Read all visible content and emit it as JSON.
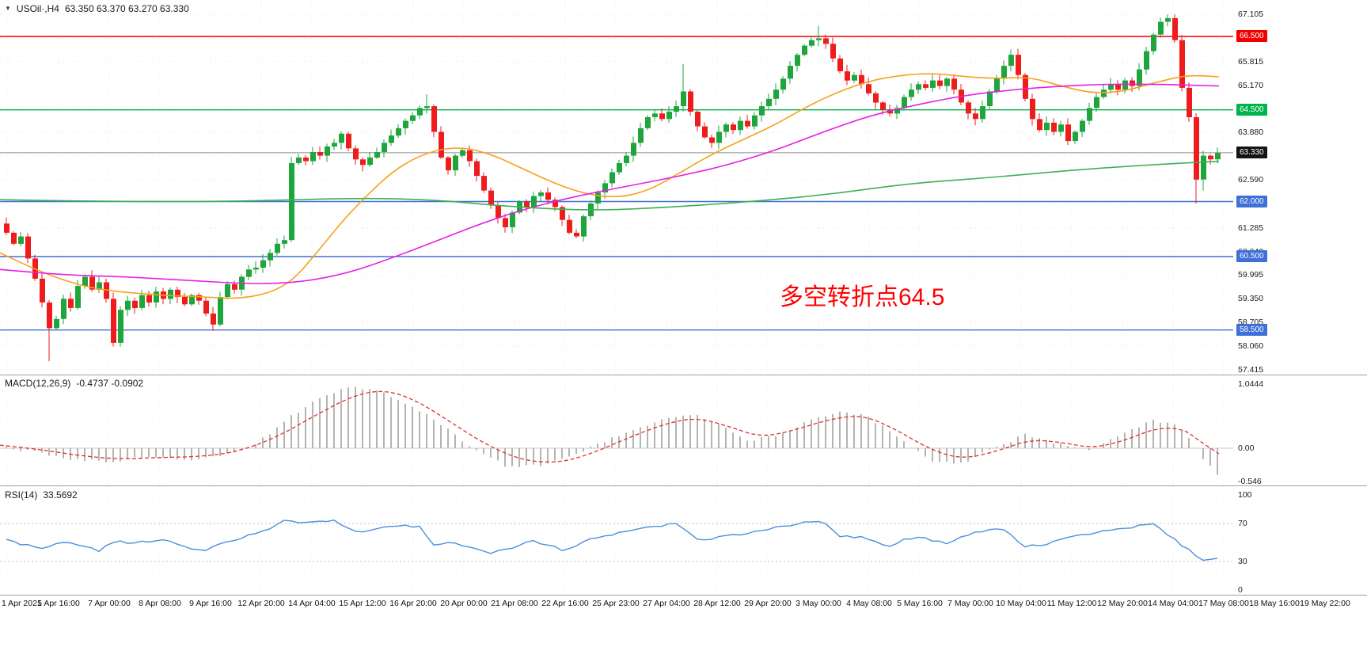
{
  "window": {
    "bg": "#FFFFFF"
  },
  "legend": {
    "symbol": "USOil·,H4",
    "ohlc": "63.350 63.370 63.270 63.330"
  },
  "annotation": {
    "text": "多空转折点64.5",
    "color": "#FF0000"
  },
  "indicators": {
    "macd": {
      "label": "MACD(12,26,9)",
      "values": "-0.4737 -0.0902"
    },
    "rsi": {
      "label": "RSI(14)",
      "value": "33.5692"
    }
  },
  "colors": {
    "candle_up": "#1EA53C",
    "candle_down": "#EE1C1C",
    "grid": "#EAEAEA",
    "axis_text": "#1A1A1A"
  },
  "chart_data": {
    "type": "candlestick+macd+rsi",
    "title": "USOil H4 chart with MACD and RSI panels",
    "price_panel": {
      "first_open": 61.4,
      "closes": [
        61.15,
        60.85,
        61.05,
        60.45,
        59.9,
        59.25,
        58.55,
        58.8,
        59.35,
        59.1,
        59.7,
        59.95,
        59.6,
        59.8,
        59.35,
        58.15,
        59.05,
        59.3,
        59.1,
        59.45,
        59.25,
        59.55,
        59.35,
        59.6,
        59.4,
        59.2,
        59.45,
        59.3,
        58.95,
        58.65,
        59.4,
        59.75,
        59.6,
        59.95,
        60.15,
        60.2,
        60.4,
        60.6,
        60.85,
        60.95,
        63.05,
        63.2,
        63.1,
        63.35,
        63.25,
        63.5,
        63.6,
        63.85,
        63.45,
        63.15,
        63.0,
        63.2,
        63.35,
        63.6,
        63.8,
        64.0,
        64.2,
        64.35,
        64.55,
        64.6,
        63.9,
        63.2,
        62.85,
        63.25,
        63.4,
        63.1,
        62.7,
        62.3,
        61.9,
        61.55,
        61.3,
        61.7,
        62.0,
        61.85,
        62.15,
        62.25,
        62.05,
        61.85,
        61.5,
        61.15,
        61.05,
        61.6,
        61.95,
        62.25,
        62.5,
        62.8,
        63.05,
        63.25,
        63.6,
        64.0,
        64.3,
        64.4,
        64.25,
        64.45,
        64.6,
        65.0,
        64.45,
        64.05,
        63.75,
        63.6,
        63.9,
        64.1,
        63.95,
        64.2,
        64.05,
        64.35,
        64.6,
        64.8,
        65.05,
        65.35,
        65.7,
        66.0,
        66.25,
        66.4,
        66.45,
        66.3,
        65.9,
        65.55,
        65.3,
        65.45,
        65.2,
        64.95,
        64.7,
        64.5,
        64.4,
        64.55,
        64.85,
        65.05,
        65.2,
        65.1,
        65.3,
        65.15,
        65.35,
        65.05,
        64.7,
        64.4,
        64.25,
        64.6,
        65.0,
        65.35,
        65.7,
        66.0,
        65.45,
        64.8,
        64.25,
        63.95,
        64.15,
        63.9,
        64.1,
        63.65,
        63.9,
        64.2,
        64.55,
        64.85,
        65.05,
        65.2,
        65.05,
        65.3,
        65.15,
        65.6,
        66.1,
        66.55,
        66.9,
        67.0,
        66.4,
        65.1,
        64.3,
        62.6,
        63.25,
        63.15,
        63.33
      ],
      "wick_overrides": {
        "6": {
          "low": 57.65
        },
        "15": {
          "low": 58.05
        },
        "59": {
          "high": 64.92
        },
        "95": {
          "high": 65.75
        },
        "114": {
          "high": 66.78
        },
        "163": {
          "high": 67.1
        },
        "167": {
          "low": 61.95
        },
        "168": {
          "low": 62.3
        }
      },
      "ma_lines": [
        {
          "name": "ma-fast-orange",
          "color": "#F7A11B",
          "points": [
            [
              0,
              60.6
            ],
            [
              60,
              60.0
            ],
            [
              120,
              59.6
            ],
            [
              200,
              59.45
            ],
            [
              260,
              59.4
            ],
            [
              300,
              59.35
            ],
            [
              340,
              59.5
            ],
            [
              370,
              59.85
            ],
            [
              400,
              60.6
            ],
            [
              430,
              61.4
            ],
            [
              460,
              62.1
            ],
            [
              500,
              62.9
            ],
            [
              540,
              63.35
            ],
            [
              580,
              63.5
            ],
            [
              620,
              63.3
            ],
            [
              660,
              62.9
            ],
            [
              700,
              62.5
            ],
            [
              740,
              62.2
            ],
            [
              780,
              62.1
            ],
            [
              820,
              62.3
            ],
            [
              860,
              62.8
            ],
            [
              900,
              63.3
            ],
            [
              940,
              63.7
            ],
            [
              980,
              64.1
            ],
            [
              1020,
              64.6
            ],
            [
              1060,
              65.0
            ],
            [
              1100,
              65.3
            ],
            [
              1140,
              65.45
            ],
            [
              1180,
              65.5
            ],
            [
              1220,
              65.4
            ],
            [
              1260,
              65.35
            ],
            [
              1300,
              65.4
            ],
            [
              1340,
              65.15
            ],
            [
              1380,
              64.95
            ],
            [
              1420,
              65.0
            ],
            [
              1460,
              65.25
            ],
            [
              1500,
              65.45
            ],
            [
              1540,
              65.4
            ]
          ]
        },
        {
          "name": "ma-mid-magenta",
          "color": "#E520E5",
          "points": [
            [
              0,
              60.15
            ],
            [
              80,
              60.0
            ],
            [
              160,
              59.95
            ],
            [
              240,
              59.85
            ],
            [
              320,
              59.75
            ],
            [
              380,
              59.8
            ],
            [
              440,
              60.05
            ],
            [
              500,
              60.5
            ],
            [
              560,
              61.0
            ],
            [
              620,
              61.5
            ],
            [
              680,
              61.9
            ],
            [
              740,
              62.2
            ],
            [
              800,
              62.45
            ],
            [
              860,
              62.7
            ],
            [
              920,
              63.0
            ],
            [
              980,
              63.4
            ],
            [
              1040,
              63.9
            ],
            [
              1100,
              64.35
            ],
            [
              1160,
              64.65
            ],
            [
              1220,
              64.9
            ],
            [
              1280,
              65.05
            ],
            [
              1340,
              65.15
            ],
            [
              1400,
              65.2
            ],
            [
              1460,
              65.2
            ],
            [
              1540,
              65.15
            ]
          ]
        },
        {
          "name": "ma-slow-green",
          "color": "#3CB054",
          "points": [
            [
              0,
              62.05
            ],
            [
              150,
              62.0
            ],
            [
              300,
              62.0
            ],
            [
              450,
              62.1
            ],
            [
              550,
              62.05
            ],
            [
              650,
              61.85
            ],
            [
              750,
              61.75
            ],
            [
              850,
              61.85
            ],
            [
              950,
              62.0
            ],
            [
              1050,
              62.2
            ],
            [
              1150,
              62.5
            ],
            [
              1250,
              62.65
            ],
            [
              1350,
              62.85
            ],
            [
              1450,
              63.0
            ],
            [
              1540,
              63.1
            ]
          ]
        }
      ],
      "levels": [
        {
          "price": 66.5,
          "label": "66.500",
          "color": "#F00000"
        },
        {
          "price": 64.5,
          "label": "64.500",
          "color": "#00B34D"
        },
        {
          "price": 62.0,
          "label": "62.000",
          "color": "#3F6FD7"
        },
        {
          "price": 60.5,
          "label": "60.500",
          "color": "#3F6FD7"
        },
        {
          "price": 58.5,
          "label": "58.500",
          "color": "#3F6FD7"
        }
      ],
      "current_price": {
        "value": 63.33,
        "label": "63.330",
        "line_color": "#8C8C8C",
        "badge_color": "#141414"
      },
      "y_labels": [
        {
          "text": "67.105",
          "price": 67.105
        },
        {
          "text": "65.815",
          "price": 65.815
        },
        {
          "text": "65.170",
          "price": 65.17
        },
        {
          "text": "63.880",
          "price": 63.88
        },
        {
          "text": "62.590",
          "price": 62.59
        },
        {
          "text": "61.285",
          "price": 61.285
        },
        {
          "text": "60.640",
          "price": 60.64
        },
        {
          "text": "59.995",
          "price": 59.995
        },
        {
          "text": "59.350",
          "price": 59.35
        },
        {
          "text": "58.705",
          "price": 58.705
        },
        {
          "text": "58.060",
          "price": 58.06
        },
        {
          "text": "57.415",
          "price": 57.415
        }
      ],
      "grid_prices": [
        67.105,
        66.46,
        65.815,
        65.17,
        64.525,
        63.88,
        63.235,
        62.59,
        61.945,
        61.285,
        60.64,
        59.995,
        59.35,
        58.705,
        58.06,
        57.415
      ],
      "y_range": [
        57.415,
        67.105
      ]
    },
    "macd_panel": {
      "hist_color": "#B4B4B4",
      "signal_color": "#E03030",
      "hist_anchors": [
        [
          0,
          0.02
        ],
        [
          40,
          -0.06
        ],
        [
          90,
          -0.18
        ],
        [
          140,
          -0.22
        ],
        [
          190,
          -0.12
        ],
        [
          240,
          -0.18
        ],
        [
          285,
          -0.1
        ],
        [
          325,
          0.08
        ],
        [
          365,
          0.5
        ],
        [
          405,
          0.85
        ],
        [
          445,
          1.0
        ],
        [
          475,
          0.95
        ],
        [
          515,
          0.7
        ],
        [
          555,
          0.42
        ],
        [
          595,
          0.02
        ],
        [
          640,
          -0.3
        ],
        [
          685,
          -0.27
        ],
        [
          725,
          -0.12
        ],
        [
          765,
          0.12
        ],
        [
          805,
          0.32
        ],
        [
          845,
          0.5
        ],
        [
          875,
          0.55
        ],
        [
          905,
          0.42
        ],
        [
          945,
          0.12
        ],
        [
          985,
          0.22
        ],
        [
          1025,
          0.45
        ],
        [
          1065,
          0.6
        ],
        [
          1095,
          0.52
        ],
        [
          1135,
          0.18
        ],
        [
          1175,
          -0.2
        ],
        [
          1215,
          -0.24
        ],
        [
          1255,
          0.0
        ],
        [
          1295,
          0.22
        ],
        [
          1335,
          0.08
        ],
        [
          1375,
          -0.04
        ],
        [
          1415,
          0.2
        ],
        [
          1455,
          0.45
        ],
        [
          1485,
          0.38
        ],
        [
          1505,
          0.1
        ],
        [
          1525,
          -0.25
        ],
        [
          1540,
          -0.47
        ]
      ],
      "signal_anchors": [
        [
          0,
          0.05
        ],
        [
          50,
          -0.02
        ],
        [
          100,
          -0.12
        ],
        [
          150,
          -0.18
        ],
        [
          200,
          -0.15
        ],
        [
          250,
          -0.14
        ],
        [
          300,
          -0.06
        ],
        [
          350,
          0.18
        ],
        [
          400,
          0.55
        ],
        [
          450,
          0.88
        ],
        [
          490,
          0.95
        ],
        [
          530,
          0.75
        ],
        [
          570,
          0.42
        ],
        [
          615,
          0.05
        ],
        [
          660,
          -0.2
        ],
        [
          705,
          -0.24
        ],
        [
          745,
          -0.1
        ],
        [
          790,
          0.15
        ],
        [
          840,
          0.4
        ],
        [
          880,
          0.5
        ],
        [
          920,
          0.36
        ],
        [
          960,
          0.18
        ],
        [
          1000,
          0.28
        ],
        [
          1050,
          0.48
        ],
        [
          1090,
          0.54
        ],
        [
          1130,
          0.32
        ],
        [
          1175,
          -0.02
        ],
        [
          1215,
          -0.18
        ],
        [
          1260,
          -0.05
        ],
        [
          1300,
          0.14
        ],
        [
          1340,
          0.1
        ],
        [
          1380,
          0.0
        ],
        [
          1420,
          0.12
        ],
        [
          1460,
          0.33
        ],
        [
          1495,
          0.32
        ],
        [
          1515,
          0.12
        ],
        [
          1540,
          -0.09
        ]
      ],
      "y_labels": [
        {
          "text": "1.0444",
          "value": 1.0444
        },
        {
          "text": "0.00",
          "value": 0
        },
        {
          "text": "-0.546",
          "value": -0.546
        }
      ]
    },
    "rsi_panel": {
      "line_color": "#4C8FDC",
      "levels": [
        70,
        30
      ],
      "anchors": [
        [
          0,
          55
        ],
        [
          25,
          49
        ],
        [
          50,
          43
        ],
        [
          75,
          51
        ],
        [
          100,
          47
        ],
        [
          125,
          41
        ],
        [
          145,
          52
        ],
        [
          170,
          49
        ],
        [
          200,
          53
        ],
        [
          230,
          47
        ],
        [
          255,
          41
        ],
        [
          280,
          50
        ],
        [
          310,
          56
        ],
        [
          335,
          62
        ],
        [
          360,
          74
        ],
        [
          380,
          69
        ],
        [
          400,
          72
        ],
        [
          425,
          73
        ],
        [
          445,
          61
        ],
        [
          470,
          63
        ],
        [
          500,
          68
        ],
        [
          530,
          66
        ],
        [
          550,
          46
        ],
        [
          570,
          51
        ],
        [
          590,
          45
        ],
        [
          615,
          39
        ],
        [
          645,
          43
        ],
        [
          670,
          52
        ],
        [
          695,
          47
        ],
        [
          715,
          41
        ],
        [
          745,
          54
        ],
        [
          785,
          61
        ],
        [
          825,
          67
        ],
        [
          855,
          70
        ],
        [
          885,
          52
        ],
        [
          915,
          56
        ],
        [
          945,
          60
        ],
        [
          985,
          67
        ],
        [
          1015,
          71
        ],
        [
          1040,
          72
        ],
        [
          1060,
          57
        ],
        [
          1090,
          55
        ],
        [
          1120,
          46
        ],
        [
          1155,
          56
        ],
        [
          1195,
          49
        ],
        [
          1235,
          61
        ],
        [
          1265,
          66
        ],
        [
          1295,
          46
        ],
        [
          1325,
          49
        ],
        [
          1355,
          57
        ],
        [
          1395,
          62
        ],
        [
          1430,
          65
        ],
        [
          1455,
          71
        ],
        [
          1480,
          56
        ],
        [
          1500,
          43
        ],
        [
          1518,
          31
        ],
        [
          1540,
          33.57
        ]
      ],
      "y_labels": [
        {
          "text": "100",
          "value": 100
        },
        {
          "text": "70",
          "value": 70
        },
        {
          "text": "30",
          "value": 30
        },
        {
          "text": "0",
          "value": 0
        }
      ]
    },
    "x_axis": {
      "labels": [
        "1 Apr 2021",
        "5 Apr 16:00",
        "7 Apr 00:00",
        "8 Apr 08:00",
        "9 Apr 16:00",
        "12 Apr 20:00",
        "14 Apr 04:00",
        "15 Apr 12:00",
        "16 Apr 20:00",
        "20 Apr 00:00",
        "21 Apr 08:00",
        "22 Apr 16:00",
        "25 Apr 23:00",
        "27 Apr 04:00",
        "28 Apr 12:00",
        "29 Apr 20:00",
        "3 May 00:00",
        "4 May 08:00",
        "5 May 16:00",
        "7 May 00:00",
        "10 May 04:00",
        "11 May 12:00",
        "12 May 20:00",
        "14 May 04:00",
        "17 May 08:00",
        "18 May 16:00",
        "19 May 22:00"
      ]
    }
  }
}
